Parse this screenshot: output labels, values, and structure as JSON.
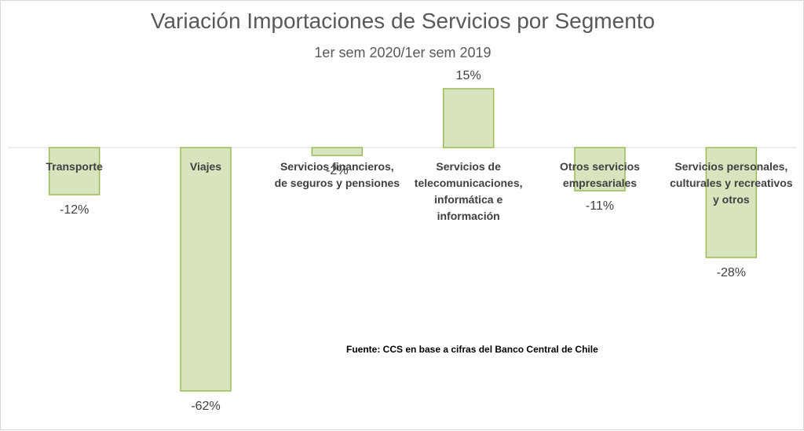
{
  "chart_data": {
    "type": "bar",
    "title": "Variación Importaciones de Servicios por Segmento",
    "subtitle": "1er sem 2020/1er sem 2019",
    "categories": [
      [
        "Transporte"
      ],
      [
        "Viajes"
      ],
      [
        "Servicios financieros,",
        "de seguros y pensiones"
      ],
      [
        "Servicios de",
        "telecomunicaciones,",
        "informática e",
        "información"
      ],
      [
        "Otros servicios",
        "empresariales"
      ],
      [
        "Servicios personales,",
        "culturales y recreativos",
        "y otros"
      ]
    ],
    "values": [
      -12,
      -62,
      -2,
      15,
      -11,
      -28
    ],
    "value_labels": [
      "-12%",
      "-62%",
      "-2%",
      "15%",
      "-11%",
      "-28%"
    ],
    "unit": "%",
    "grid": false,
    "legend": "none",
    "bar_color": "#d7e4bd",
    "bar_border_color": "#9bbb59"
  },
  "source_note": "Fuente: CCS en base a cifras del Banco Central de Chile"
}
